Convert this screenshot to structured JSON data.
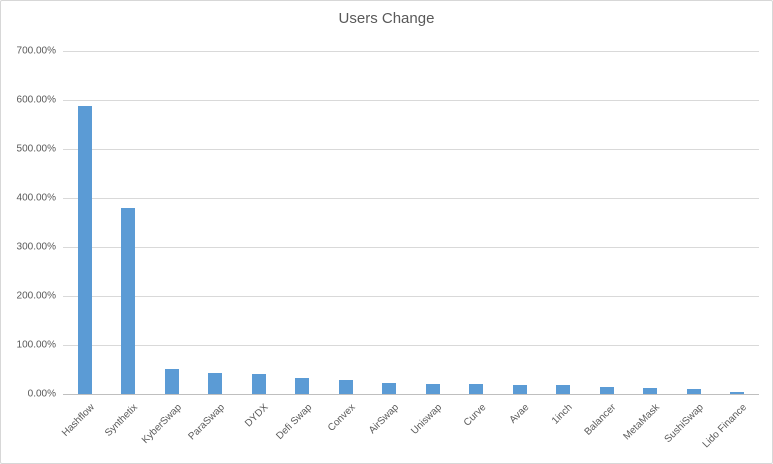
{
  "chart_data": {
    "type": "bar",
    "title": "Users Change",
    "categories": [
      "Hashflow",
      "Synthetix",
      "KyberSwap",
      "ParaSwap",
      "DYDX",
      "Defi Swap",
      "Convex",
      "AirSwap",
      "Uniswap",
      "Curve",
      "Avae",
      "1inch",
      "Balancer",
      "MetaMask",
      "SushiSwap",
      "Lido Finance"
    ],
    "values": [
      588,
      380,
      52,
      43,
      41,
      32,
      28,
      22,
      20,
      20,
      19,
      19,
      15,
      13,
      11,
      5
    ],
    "unit": "%",
    "xlabel": "",
    "ylabel": "",
    "ylim": [
      0,
      700
    ],
    "ytick_step": 100,
    "ytick_labels": [
      "0.00%",
      "100.00%",
      "200.00%",
      "300.00%",
      "400.00%",
      "500.00%",
      "600.00%",
      "700.00%"
    ],
    "grid": true,
    "legend_position": "none",
    "bar_color": "#5b9bd5",
    "gridline_color": "#d9d9d9",
    "axis_label_color": "#595959",
    "title_color": "#595959"
  }
}
